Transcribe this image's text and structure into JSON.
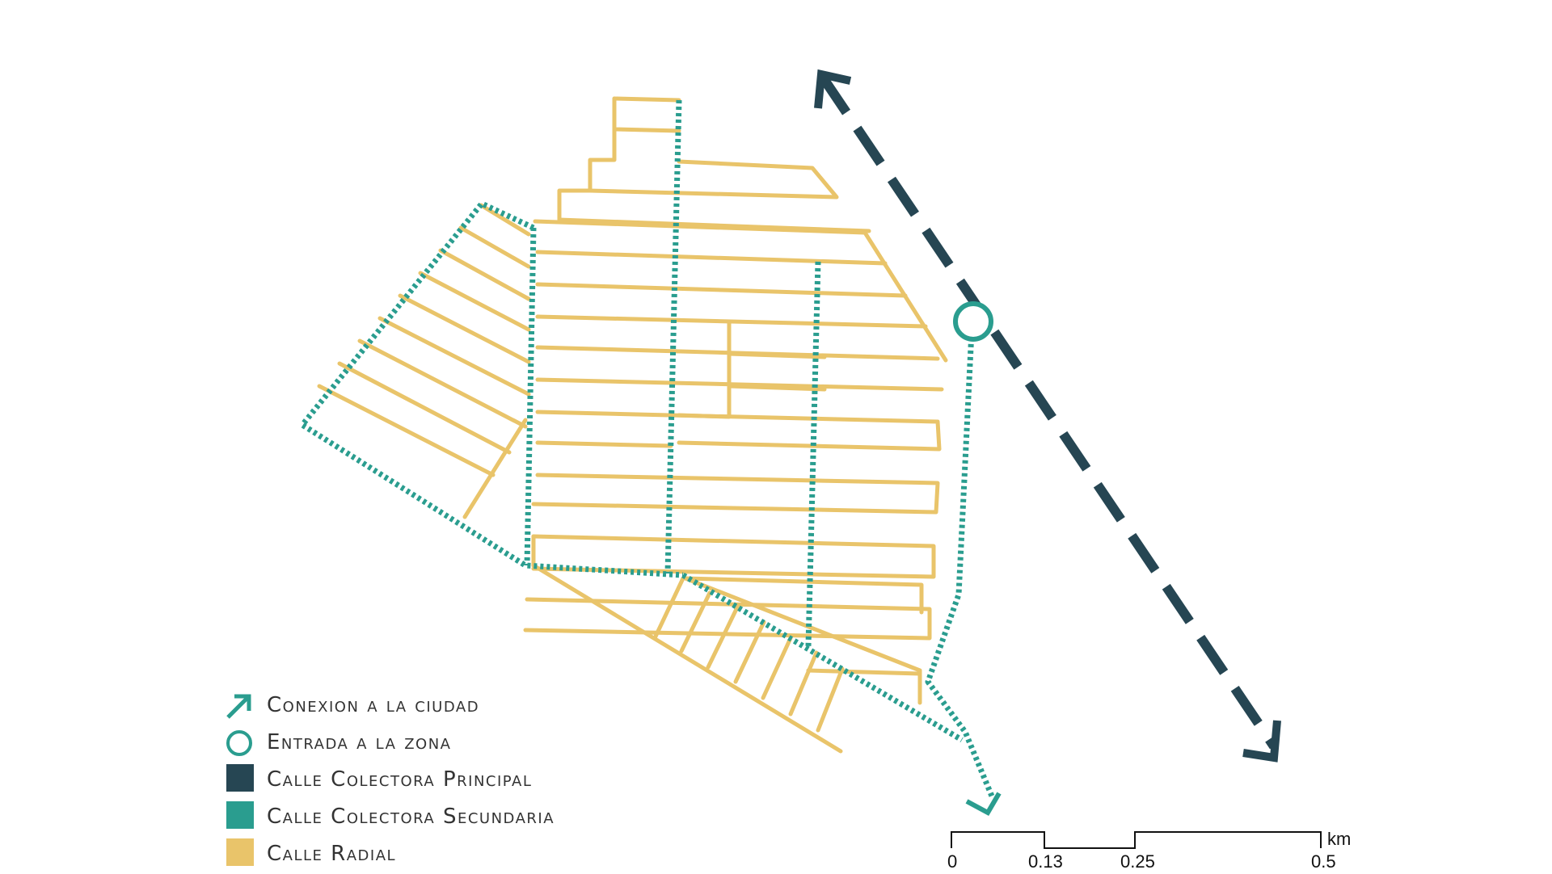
{
  "legend": {
    "items": [
      {
        "label": "Conexion a la ciudad",
        "symbol": "arrow-icon",
        "color": "#2a9d8f"
      },
      {
        "label": "Entrada a la zona",
        "symbol": "circle-icon",
        "color": "#2a9d8f"
      },
      {
        "label": "Calle Colectora Principal",
        "symbol": "swatch",
        "color": "#264653"
      },
      {
        "label": "Calle Colectora Secundaria",
        "symbol": "swatch",
        "color": "#2a9d8f"
      },
      {
        "label": "Calle Radial",
        "symbol": "swatch",
        "color": "#e9c46a"
      }
    ]
  },
  "scale": {
    "ticks": [
      "0",
      "0.13",
      "0.25",
      "0.5"
    ],
    "unit": "km"
  },
  "colors": {
    "principal": "#264653",
    "secundaria": "#2a9d8f",
    "radial": "#e9c46a"
  }
}
